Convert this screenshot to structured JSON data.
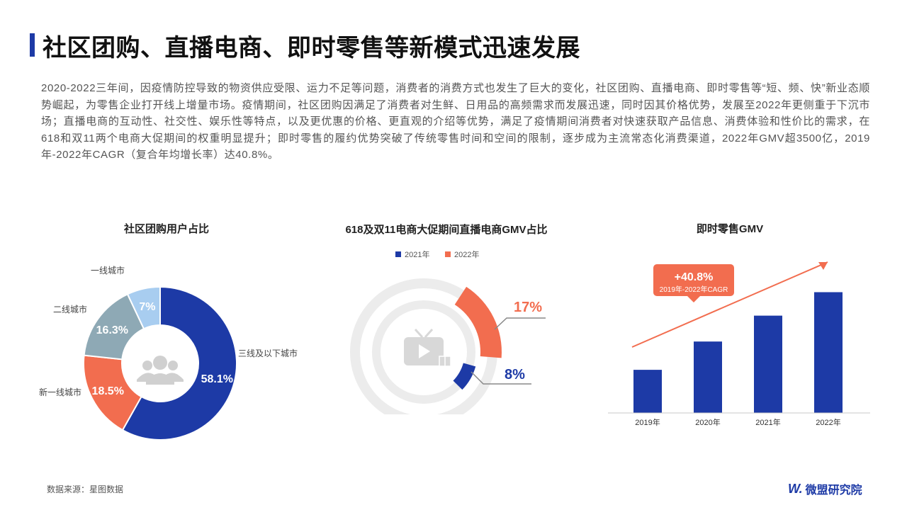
{
  "title": "社区团购、直播电商、即时零售等新模式迅速发展",
  "intro": "2020-2022三年间，因疫情防控导致的物资供应受限、运力不足等问题，消费者的消费方式也发生了巨大的变化，社区团购、直播电商、即时零售等“短、频、快”新业态顺势崛起，为零售企业打开线上增量市场。疫情期间，社区团购因满足了消费者对生鲜、日用品的高频需求而发展迅速，同时因其价格优势，发展至2022年更侧重于下沉市场；直播电商的互动性、社交性、娱乐性等特点，以及更优惠的价格、更直观的介绍等优势，满足了疫情期间消费者对快速获取产品信息、消费体验和性价比的需求，在618和双11两个电商大促期间的权重明显提升；即时零售的履约优势突破了传统零售时间和空间的限制，逐步成为主流常态化消费渠道，2022年GMV超3500亿，2019年-2022年CAGR（复合年均增长率）达40.8%。",
  "icons": {
    "donut_center": "users-group-icon",
    "ring_center": "tv-play-gift-icon",
    "logo": "weimeng-logo-mark"
  },
  "colors": {
    "blue": "#1d3aa6",
    "orange": "#f26d4f",
    "gray_blue": "#8ea9b5",
    "light_blue": "#a8cdf0",
    "ring_gray": "#ececec"
  },
  "chart_data": [
    {
      "type": "pie",
      "title": "社区团购用户占比",
      "slices": [
        {
          "label": "三线及以下城市",
          "value": 58.1,
          "display": "58.1%",
          "color": "#1d3aa6"
        },
        {
          "label": "新一线城市",
          "value": 18.5,
          "display": "18.5%",
          "color": "#f26d4f"
        },
        {
          "label": "二线城市",
          "value": 16.3,
          "display": "16.3%",
          "color": "#8ea9b5"
        },
        {
          "label": "一线城市",
          "value": 7,
          "display": "7%",
          "color": "#a8cdf0"
        }
      ]
    },
    {
      "type": "pie",
      "title": "618及双11电商大促期间直播电商GMV占比",
      "legend": [
        "2021年",
        "2022年"
      ],
      "series": [
        {
          "name": "2021年",
          "value": 8,
          "display": "8%",
          "color": "#1d3aa6"
        },
        {
          "name": "2022年",
          "value": 17,
          "display": "17%",
          "color": "#f26d4f"
        }
      ]
    },
    {
      "type": "bar",
      "title": "即时零售GMV",
      "categories": [
        "2019年",
        "2020年",
        "2021年",
        "2022年"
      ],
      "values": [
        1250,
        2070,
        2820,
        3500
      ],
      "ylim": [
        0,
        3900
      ],
      "annotation": {
        "value": "+40.8%",
        "sub": "2019年-2022年CAGR"
      }
    }
  ],
  "footer": {
    "source": "数据来源：星图数据",
    "logo_text": "微盟研究院"
  }
}
